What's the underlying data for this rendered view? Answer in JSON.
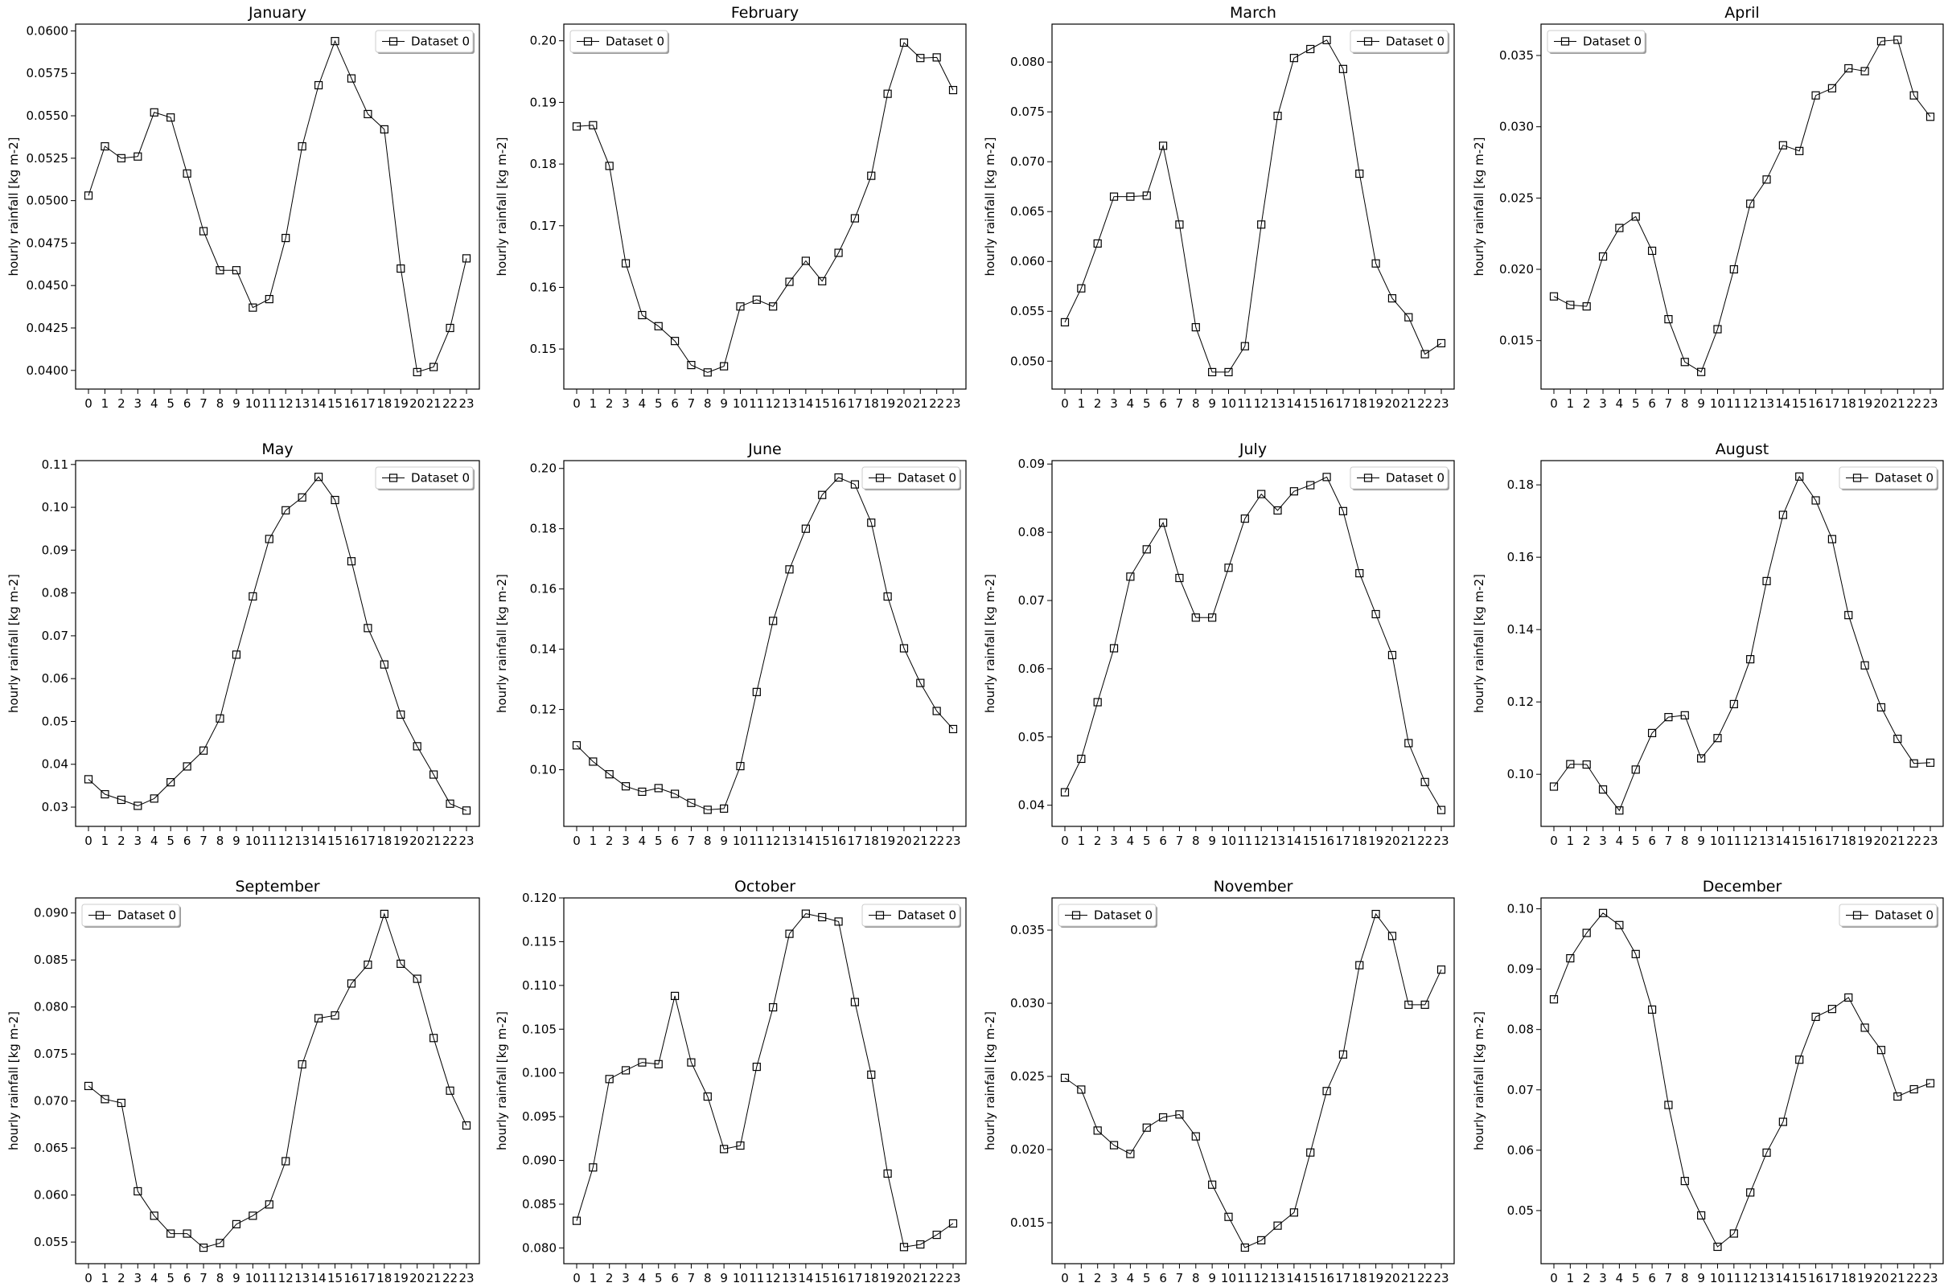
{
  "chart_data": [
    {
      "type": "line",
      "title": "January",
      "ylabel": "hourly rainfall  [kg m-2]",
      "xlabel": "",
      "legend": "top-right",
      "grid": false,
      "x": [
        0,
        1,
        2,
        3,
        4,
        5,
        6,
        7,
        8,
        9,
        10,
        11,
        12,
        13,
        14,
        15,
        16,
        17,
        18,
        19,
        20,
        21,
        22,
        23
      ],
      "ylim": [
        0.0389,
        0.0604
      ],
      "yticks": [
        {
          "v": 0.04,
          "label": "0.0400"
        },
        {
          "v": 0.0425,
          "label": "0.0425"
        },
        {
          "v": 0.045,
          "label": "0.0450"
        },
        {
          "v": 0.0475,
          "label": "0.0475"
        },
        {
          "v": 0.05,
          "label": "0.0500"
        },
        {
          "v": 0.0525,
          "label": "0.0525"
        },
        {
          "v": 0.055,
          "label": "0.0550"
        },
        {
          "v": 0.0575,
          "label": "0.0575"
        },
        {
          "v": 0.06,
          "label": "0.0600"
        }
      ],
      "series": [
        {
          "name": "Dataset 0",
          "values": [
            0.0503,
            0.0532,
            0.0525,
            0.0526,
            0.0552,
            0.0549,
            0.0516,
            0.0482,
            0.0459,
            0.0459,
            0.0437,
            0.0442,
            0.0478,
            0.0532,
            0.0568,
            0.0594,
            0.0572,
            0.0551,
            0.0542,
            0.046,
            0.0399,
            0.0402,
            0.0425,
            0.0466
          ]
        }
      ]
    },
    {
      "type": "line",
      "title": "February",
      "ylabel": "hourly rainfall  [kg m-2]",
      "xlabel": "",
      "legend": "top-left",
      "grid": false,
      "x": [
        0,
        1,
        2,
        3,
        4,
        5,
        6,
        7,
        8,
        9,
        10,
        11,
        12,
        13,
        14,
        15,
        16,
        17,
        18,
        19,
        20,
        21,
        22,
        23
      ],
      "ylim": [
        0.1435,
        0.2027
      ],
      "yticks": [
        {
          "v": 0.15,
          "label": "0.15"
        },
        {
          "v": 0.16,
          "label": "0.16"
        },
        {
          "v": 0.17,
          "label": "0.17"
        },
        {
          "v": 0.18,
          "label": "0.18"
        },
        {
          "v": 0.19,
          "label": "0.19"
        },
        {
          "v": 0.2,
          "label": "0.20"
        }
      ],
      "series": [
        {
          "name": "Dataset 0",
          "values": [
            0.1861,
            0.1863,
            0.1797,
            0.1639,
            0.1555,
            0.1537,
            0.1513,
            0.1474,
            0.1462,
            0.1472,
            0.1569,
            0.158,
            0.1569,
            0.1609,
            0.1643,
            0.161,
            0.1656,
            0.1712,
            0.1781,
            0.1914,
            0.1997,
            0.1972,
            0.1973,
            0.192
          ]
        }
      ]
    },
    {
      "type": "line",
      "title": "March",
      "ylabel": "hourly rainfall  [kg m-2]",
      "xlabel": "",
      "legend": "top-right",
      "grid": false,
      "x": [
        0,
        1,
        2,
        3,
        4,
        5,
        6,
        7,
        8,
        9,
        10,
        11,
        12,
        13,
        14,
        15,
        16,
        17,
        18,
        19,
        20,
        21,
        22,
        23
      ],
      "ylim": [
        0.0472,
        0.0838
      ],
      "yticks": [
        {
          "v": 0.05,
          "label": "0.050"
        },
        {
          "v": 0.055,
          "label": "0.055"
        },
        {
          "v": 0.06,
          "label": "0.060"
        },
        {
          "v": 0.065,
          "label": "0.065"
        },
        {
          "v": 0.07,
          "label": "0.070"
        },
        {
          "v": 0.075,
          "label": "0.075"
        },
        {
          "v": 0.08,
          "label": "0.080"
        }
      ],
      "series": [
        {
          "name": "Dataset 0",
          "values": [
            0.0539,
            0.0573,
            0.0618,
            0.0665,
            0.0665,
            0.0666,
            0.0716,
            0.0637,
            0.0534,
            0.0489,
            0.0489,
            0.0515,
            0.0637,
            0.0746,
            0.0804,
            0.0813,
            0.0822,
            0.0793,
            0.0688,
            0.0598,
            0.0563,
            0.0544,
            0.0507,
            0.0518
          ]
        }
      ]
    },
    {
      "type": "line",
      "title": "April",
      "ylabel": "hourly rainfall  [kg m-2]",
      "xlabel": "",
      "legend": "top-left",
      "grid": false,
      "x": [
        0,
        1,
        2,
        3,
        4,
        5,
        6,
        7,
        8,
        9,
        10,
        11,
        12,
        13,
        14,
        15,
        16,
        17,
        18,
        19,
        20,
        21,
        22,
        23
      ],
      "ylim": [
        0.0116,
        0.0372
      ],
      "yticks": [
        {
          "v": 0.015,
          "label": "0.015"
        },
        {
          "v": 0.02,
          "label": "0.020"
        },
        {
          "v": 0.025,
          "label": "0.025"
        },
        {
          "v": 0.03,
          "label": "0.030"
        },
        {
          "v": 0.035,
          "label": "0.035"
        }
      ],
      "series": [
        {
          "name": "Dataset 0",
          "values": [
            0.0181,
            0.0175,
            0.0174,
            0.0209,
            0.0229,
            0.0237,
            0.0213,
            0.0165,
            0.0135,
            0.0128,
            0.0158,
            0.02,
            0.0246,
            0.0263,
            0.0287,
            0.0283,
            0.0322,
            0.0327,
            0.0341,
            0.0339,
            0.036,
            0.0361,
            0.0322,
            0.0307
          ]
        }
      ]
    },
    {
      "type": "line",
      "title": "May",
      "ylabel": "hourly rainfall  [kg m-2]",
      "xlabel": "",
      "legend": "top-right",
      "grid": false,
      "x": [
        0,
        1,
        2,
        3,
        4,
        5,
        6,
        7,
        8,
        9,
        10,
        11,
        12,
        13,
        14,
        15,
        16,
        17,
        18,
        19,
        20,
        21,
        22,
        23
      ],
      "ylim": [
        0.0255,
        0.1109
      ],
      "yticks": [
        {
          "v": 0.03,
          "label": "0.03"
        },
        {
          "v": 0.04,
          "label": "0.04"
        },
        {
          "v": 0.05,
          "label": "0.05"
        },
        {
          "v": 0.06,
          "label": "0.06"
        },
        {
          "v": 0.07,
          "label": "0.07"
        },
        {
          "v": 0.08,
          "label": "0.08"
        },
        {
          "v": 0.09,
          "label": "0.09"
        },
        {
          "v": 0.1,
          "label": "0.10"
        },
        {
          "v": 0.11,
          "label": "0.11"
        }
      ],
      "series": [
        {
          "name": "Dataset 0",
          "values": [
            0.0365,
            0.033,
            0.0317,
            0.0303,
            0.032,
            0.0358,
            0.0395,
            0.0432,
            0.0507,
            0.0656,
            0.0792,
            0.0926,
            0.0993,
            0.1023,
            0.1071,
            0.1017,
            0.0874,
            0.0718,
            0.0633,
            0.0516,
            0.0442,
            0.0376,
            0.0308,
            0.0292
          ]
        }
      ]
    },
    {
      "type": "line",
      "title": "June",
      "ylabel": "hourly rainfall  [kg m-2]",
      "xlabel": "",
      "legend": "top-right",
      "grid": false,
      "x": [
        0,
        1,
        2,
        3,
        4,
        5,
        6,
        7,
        8,
        9,
        10,
        11,
        12,
        13,
        14,
        15,
        16,
        17,
        18,
        19,
        20,
        21,
        22,
        23
      ],
      "ylim": [
        0.0812,
        0.2026
      ],
      "yticks": [
        {
          "v": 0.1,
          "label": "0.10"
        },
        {
          "v": 0.12,
          "label": "0.12"
        },
        {
          "v": 0.14,
          "label": "0.14"
        },
        {
          "v": 0.16,
          "label": "0.16"
        },
        {
          "v": 0.18,
          "label": "0.18"
        },
        {
          "v": 0.2,
          "label": "0.20"
        }
      ],
      "series": [
        {
          "name": "Dataset 0",
          "values": [
            0.1081,
            0.1027,
            0.0985,
            0.0945,
            0.0927,
            0.0939,
            0.092,
            0.089,
            0.0867,
            0.0871,
            0.1012,
            0.1258,
            0.1494,
            0.1665,
            0.18,
            0.1912,
            0.197,
            0.1947,
            0.182,
            0.1575,
            0.1403,
            0.1288,
            0.1195,
            0.1135
          ]
        }
      ]
    },
    {
      "type": "line",
      "title": "July",
      "ylabel": "hourly rainfall  [kg m-2]",
      "xlabel": "",
      "legend": "top-right",
      "grid": false,
      "x": [
        0,
        1,
        2,
        3,
        4,
        5,
        6,
        7,
        8,
        9,
        10,
        11,
        12,
        13,
        14,
        15,
        16,
        17,
        18,
        19,
        20,
        21,
        22,
        23
      ],
      "ylim": [
        0.0369,
        0.0905
      ],
      "yticks": [
        {
          "v": 0.04,
          "label": "0.04"
        },
        {
          "v": 0.05,
          "label": "0.05"
        },
        {
          "v": 0.06,
          "label": "0.06"
        },
        {
          "v": 0.07,
          "label": "0.07"
        },
        {
          "v": 0.08,
          "label": "0.08"
        },
        {
          "v": 0.09,
          "label": "0.09"
        }
      ],
      "series": [
        {
          "name": "Dataset 0",
          "values": [
            0.0419,
            0.0468,
            0.0551,
            0.063,
            0.0735,
            0.0775,
            0.0814,
            0.0733,
            0.0675,
            0.0675,
            0.0748,
            0.082,
            0.0856,
            0.0832,
            0.086,
            0.0869,
            0.0881,
            0.0831,
            0.074,
            0.068,
            0.062,
            0.0491,
            0.0434,
            0.0393
          ]
        }
      ]
    },
    {
      "type": "line",
      "title": "August",
      "ylabel": "hourly rainfall  [kg m-2]",
      "xlabel": "",
      "legend": "top-right",
      "grid": false,
      "x": [
        0,
        1,
        2,
        3,
        4,
        5,
        6,
        7,
        8,
        9,
        10,
        11,
        12,
        13,
        14,
        15,
        16,
        17,
        18,
        19,
        20,
        21,
        22,
        23
      ],
      "ylim": [
        0.0856,
        0.1867
      ],
      "yticks": [
        {
          "v": 0.1,
          "label": "0.10"
        },
        {
          "v": 0.12,
          "label": "0.12"
        },
        {
          "v": 0.14,
          "label": "0.14"
        },
        {
          "v": 0.16,
          "label": "0.16"
        },
        {
          "v": 0.18,
          "label": "0.18"
        }
      ],
      "series": [
        {
          "name": "Dataset 0",
          "values": [
            0.0966,
            0.1028,
            0.1027,
            0.0958,
            0.09,
            0.1013,
            0.1114,
            0.1158,
            0.1163,
            0.1044,
            0.11,
            0.1194,
            0.1318,
            0.1534,
            0.1717,
            0.1823,
            0.1757,
            0.165,
            0.144,
            0.1301,
            0.1185,
            0.1098,
            0.103,
            0.1032
          ]
        }
      ]
    },
    {
      "type": "line",
      "title": "September",
      "ylabel": "hourly rainfall  [kg m-2]",
      "xlabel": "",
      "legend": "top-left",
      "grid": false,
      "x": [
        0,
        1,
        2,
        3,
        4,
        5,
        6,
        7,
        8,
        9,
        10,
        11,
        12,
        13,
        14,
        15,
        16,
        17,
        18,
        19,
        20,
        21,
        22,
        23
      ],
      "ylim": [
        0.0527,
        0.0916
      ],
      "yticks": [
        {
          "v": 0.055,
          "label": "0.055"
        },
        {
          "v": 0.06,
          "label": "0.060"
        },
        {
          "v": 0.065,
          "label": "0.065"
        },
        {
          "v": 0.07,
          "label": "0.070"
        },
        {
          "v": 0.075,
          "label": "0.075"
        },
        {
          "v": 0.08,
          "label": "0.080"
        },
        {
          "v": 0.085,
          "label": "0.085"
        },
        {
          "v": 0.09,
          "label": "0.090"
        }
      ],
      "series": [
        {
          "name": "Dataset 0",
          "values": [
            0.0716,
            0.0702,
            0.0698,
            0.0604,
            0.0578,
            0.0559,
            0.0559,
            0.0544,
            0.0549,
            0.0569,
            0.0578,
            0.059,
            0.0636,
            0.0739,
            0.0788,
            0.0791,
            0.0825,
            0.0845,
            0.0899,
            0.0846,
            0.083,
            0.0767,
            0.0711,
            0.0674
          ]
        }
      ]
    },
    {
      "type": "line",
      "title": "October",
      "ylabel": "hourly rainfall  [kg m-2]",
      "xlabel": "",
      "legend": "top-right",
      "grid": false,
      "x": [
        0,
        1,
        2,
        3,
        4,
        5,
        6,
        7,
        8,
        9,
        10,
        11,
        12,
        13,
        14,
        15,
        16,
        17,
        18,
        19,
        20,
        21,
        22,
        23
      ],
      "ylim": [
        0.0782,
        0.12
      ],
      "yticks": [
        {
          "v": 0.08,
          "label": "0.080"
        },
        {
          "v": 0.085,
          "label": "0.085"
        },
        {
          "v": 0.09,
          "label": "0.090"
        },
        {
          "v": 0.095,
          "label": "0.095"
        },
        {
          "v": 0.1,
          "label": "0.100"
        },
        {
          "v": 0.105,
          "label": "0.105"
        },
        {
          "v": 0.11,
          "label": "0.110"
        },
        {
          "v": 0.115,
          "label": "0.115"
        },
        {
          "v": 0.12,
          "label": "0.120"
        }
      ],
      "series": [
        {
          "name": "Dataset 0",
          "values": [
            0.0831,
            0.0892,
            0.0993,
            0.1003,
            0.1012,
            0.101,
            0.1088,
            0.1012,
            0.0973,
            0.0913,
            0.0917,
            0.1007,
            0.1075,
            0.1159,
            0.1182,
            0.1178,
            0.1173,
            0.1081,
            0.0998,
            0.0885,
            0.0801,
            0.0804,
            0.0815,
            0.0828
          ]
        }
      ]
    },
    {
      "type": "line",
      "title": "November",
      "ylabel": "hourly rainfall  [kg m-2]",
      "xlabel": "",
      "legend": "top-left",
      "grid": false,
      "x": [
        0,
        1,
        2,
        3,
        4,
        5,
        6,
        7,
        8,
        9,
        10,
        11,
        12,
        13,
        14,
        15,
        16,
        17,
        18,
        19,
        20,
        21,
        22,
        23
      ],
      "ylim": [
        0.0122,
        0.0372
      ],
      "yticks": [
        {
          "v": 0.015,
          "label": "0.015"
        },
        {
          "v": 0.02,
          "label": "0.020"
        },
        {
          "v": 0.025,
          "label": "0.025"
        },
        {
          "v": 0.03,
          "label": "0.030"
        },
        {
          "v": 0.035,
          "label": "0.035"
        }
      ],
      "series": [
        {
          "name": "Dataset 0",
          "values": [
            0.0249,
            0.0241,
            0.0213,
            0.0203,
            0.0197,
            0.0215,
            0.0222,
            0.0224,
            0.0209,
            0.0176,
            0.0154,
            0.0133,
            0.0138,
            0.0148,
            0.0157,
            0.0198,
            0.024,
            0.0265,
            0.0326,
            0.0361,
            0.0346,
            0.0299,
            0.0299,
            0.0323
          ]
        }
      ]
    },
    {
      "type": "line",
      "title": "December",
      "ylabel": "hourly rainfall  [kg m-2]",
      "xlabel": "",
      "legend": "top-right",
      "grid": false,
      "x": [
        0,
        1,
        2,
        3,
        4,
        5,
        6,
        7,
        8,
        9,
        10,
        11,
        12,
        13,
        14,
        15,
        16,
        17,
        18,
        19,
        20,
        21,
        22,
        23
      ],
      "ylim": [
        0.0412,
        0.1018
      ],
      "yticks": [
        {
          "v": 0.05,
          "label": "0.05"
        },
        {
          "v": 0.06,
          "label": "0.06"
        },
        {
          "v": 0.07,
          "label": "0.07"
        },
        {
          "v": 0.08,
          "label": "0.08"
        },
        {
          "v": 0.09,
          "label": "0.09"
        },
        {
          "v": 0.1,
          "label": "0.10"
        }
      ],
      "series": [
        {
          "name": "Dataset 0",
          "values": [
            0.085,
            0.0918,
            0.096,
            0.0993,
            0.0973,
            0.0925,
            0.0833,
            0.0675,
            0.0549,
            0.0492,
            0.044,
            0.0462,
            0.053,
            0.0596,
            0.0647,
            0.075,
            0.0821,
            0.0834,
            0.0853,
            0.0803,
            0.0766,
            0.0689,
            0.0701,
            0.0711
          ]
        }
      ]
    }
  ]
}
